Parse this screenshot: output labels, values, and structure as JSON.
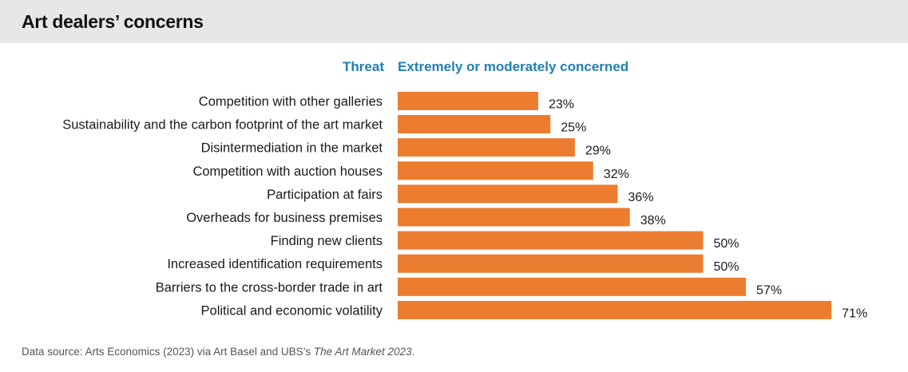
{
  "title": "Art dealers’ concerns",
  "header": {
    "category_label": "Threat",
    "value_label": "Extremely or moderately concerned"
  },
  "source": {
    "prefix": "Data source: Arts Economics (2023) via Art Basel and UBS’s ",
    "italic": "The Art Market 2023",
    "suffix": "."
  },
  "colors": {
    "bar": "#ec7c30",
    "header": "#1f7fb5",
    "title_band": "#e7e7e8"
  },
  "chart_data": {
    "type": "bar",
    "orientation": "horizontal",
    "title": "Art dealers’ concerns",
    "xlabel": "Extremely or moderately concerned",
    "ylabel": "Threat",
    "unit": "%",
    "xlim": [
      0,
      75
    ],
    "grid": false,
    "categories": [
      "Competition with other galleries",
      "Sustainability and the carbon footprint of the art market",
      "Disintermediation in the market",
      "Competition with auction houses",
      "Participation at fairs",
      "Overheads for business premises",
      "Finding new clients",
      "Increased identification requirements",
      "Barriers to the cross-border trade in art",
      "Political and economic volatility"
    ],
    "values": [
      23,
      25,
      29,
      32,
      36,
      38,
      50,
      50,
      57,
      71
    ],
    "labels": [
      "23%",
      "25%",
      "29%",
      "32%",
      "36%",
      "38%",
      "50%",
      "50%",
      "57%",
      "71%"
    ]
  }
}
